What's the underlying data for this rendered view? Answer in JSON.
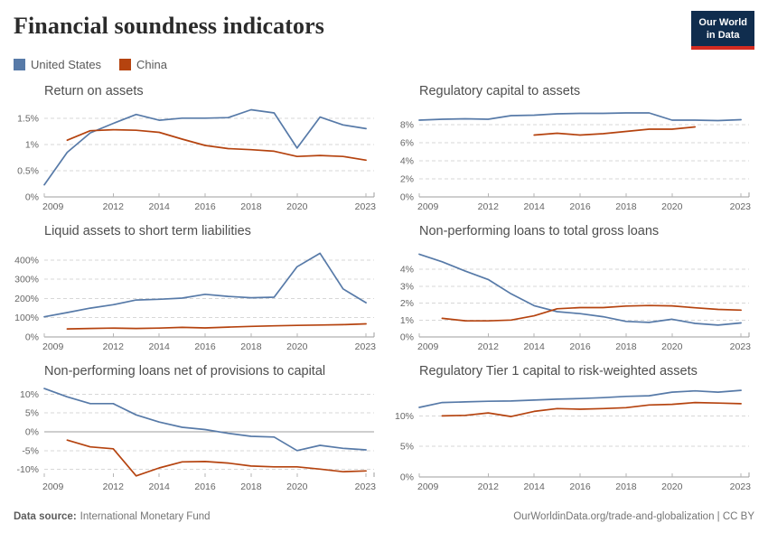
{
  "header": {
    "title": "Financial soundness indicators",
    "logo": {
      "line1": "Our World",
      "line2": "in Data"
    }
  },
  "legend": {
    "items": [
      {
        "label": "United States",
        "color_key": "us"
      },
      {
        "label": "China",
        "color_key": "china"
      }
    ]
  },
  "colors": {
    "us": "#577aa8",
    "china": "#b5430f",
    "logo_bg": "#102d4e",
    "logo_bar": "#d42b20"
  },
  "footer": {
    "source_label": "Data source:",
    "source_value": "International Monetary Fund",
    "right_text": "OurWorldinData.org/trade-and-globalization | CC BY"
  },
  "chart_data": [
    {
      "type": "line",
      "title": "Return on assets",
      "unit": "%",
      "xlim": [
        2009,
        2023.35
      ],
      "ylim": [
        0,
        1.72
      ],
      "xticks": [
        2009,
        2012,
        2014,
        2016,
        2018,
        2020,
        2023
      ],
      "xtick_labels": [
        "2009",
        "2012",
        "2014",
        "2016",
        "2018",
        "2020",
        "2023"
      ],
      "yticks": [
        0,
        0.5,
        1,
        1.5
      ],
      "ytick_labels": [
        "0%",
        "0.5%",
        "1%",
        "1.5%"
      ],
      "series": [
        {
          "name": "United States",
          "color_key": "us",
          "x": [
            2009,
            2010,
            2011,
            2012,
            2013,
            2014,
            2015,
            2016,
            2017,
            2018,
            2019,
            2020,
            2021,
            2022,
            2023
          ],
          "values": [
            0.23,
            0.85,
            1.22,
            1.4,
            1.57,
            1.46,
            1.5,
            1.5,
            1.51,
            1.66,
            1.6,
            0.93,
            1.52,
            1.37,
            1.3
          ]
        },
        {
          "name": "China",
          "color_key": "china",
          "x": [
            2010,
            2011,
            2012,
            2013,
            2014,
            2015,
            2016,
            2017,
            2018,
            2019,
            2020,
            2021,
            2022,
            2023
          ],
          "values": [
            1.08,
            1.26,
            1.28,
            1.27,
            1.23,
            1.1,
            0.98,
            0.92,
            0.9,
            0.87,
            0.77,
            0.79,
            0.77,
            0.7
          ]
        }
      ]
    },
    {
      "type": "line",
      "title": "Regulatory capital to assets",
      "unit": "%",
      "xlim": [
        2009,
        2023.35
      ],
      "ylim": [
        0,
        10
      ],
      "xticks": [
        2009,
        2012,
        2014,
        2016,
        2018,
        2020,
        2023
      ],
      "xtick_labels": [
        "2009",
        "2012",
        "2014",
        "2016",
        "2018",
        "2020",
        "2023"
      ],
      "yticks": [
        0,
        2,
        4,
        6,
        8
      ],
      "ytick_labels": [
        "0%",
        "2%",
        "4%",
        "6%",
        "8%"
      ],
      "series": [
        {
          "name": "United States",
          "color_key": "us",
          "x": [
            2009,
            2010,
            2011,
            2012,
            2013,
            2014,
            2015,
            2016,
            2017,
            2018,
            2019,
            2020,
            2021,
            2022,
            2023
          ],
          "values": [
            8.5,
            8.6,
            8.65,
            8.6,
            9.0,
            9.05,
            9.2,
            9.25,
            9.25,
            9.3,
            9.3,
            8.5,
            8.5,
            8.45,
            8.55
          ]
        },
        {
          "name": "China",
          "color_key": "china",
          "x": [
            2014,
            2015,
            2016,
            2017,
            2018,
            2019,
            2020,
            2021
          ],
          "values": [
            6.85,
            7.05,
            6.85,
            7.0,
            7.25,
            7.5,
            7.5,
            7.75
          ]
        }
      ]
    },
    {
      "type": "line",
      "title": "Liquid assets to short term liabilities",
      "unit": "%",
      "xlim": [
        2009,
        2023.35
      ],
      "ylim": [
        0,
        470
      ],
      "xticks": [
        2009,
        2012,
        2014,
        2016,
        2018,
        2020,
        2023
      ],
      "xtick_labels": [
        "2009",
        "2012",
        "2014",
        "2016",
        "2018",
        "2020",
        "2023"
      ],
      "yticks": [
        0,
        100,
        200,
        300,
        400
      ],
      "ytick_labels": [
        "0%",
        "100%",
        "200%",
        "300%",
        "400%"
      ],
      "series": [
        {
          "name": "United States",
          "color_key": "us",
          "x": [
            2009,
            2010,
            2011,
            2012,
            2013,
            2014,
            2015,
            2016,
            2017,
            2018,
            2019,
            2020,
            2021,
            2022,
            2023
          ],
          "values": [
            105,
            127,
            150,
            168,
            192,
            196,
            202,
            222,
            211,
            204,
            207,
            365,
            435,
            250,
            178
          ]
        },
        {
          "name": "China",
          "color_key": "china",
          "x": [
            2010,
            2011,
            2012,
            2013,
            2014,
            2015,
            2016,
            2017,
            2018,
            2019,
            2020,
            2021,
            2022,
            2023
          ],
          "values": [
            42,
            44,
            46,
            44,
            46,
            50,
            47,
            51,
            55,
            58,
            60,
            62,
            64,
            68
          ]
        }
      ]
    },
    {
      "type": "line",
      "title": "Non-performing loans to total gross loans",
      "unit": "%",
      "xlim": [
        2009,
        2023.35
      ],
      "ylim": [
        0,
        5.35
      ],
      "xticks": [
        2009,
        2012,
        2014,
        2016,
        2018,
        2020,
        2023
      ],
      "xtick_labels": [
        "2009",
        "2012",
        "2014",
        "2016",
        "2018",
        "2020",
        "2023"
      ],
      "yticks": [
        0,
        1,
        2,
        3,
        4
      ],
      "ytick_labels": [
        "0%",
        "1%",
        "2%",
        "3%",
        "4%"
      ],
      "series": [
        {
          "name": "United States",
          "color_key": "us",
          "x": [
            2009,
            2010,
            2011,
            2012,
            2013,
            2014,
            2015,
            2016,
            2017,
            2018,
            2019,
            2020,
            2021,
            2022,
            2023
          ],
          "values": [
            4.9,
            4.45,
            3.9,
            3.4,
            2.55,
            1.85,
            1.5,
            1.38,
            1.2,
            0.92,
            0.86,
            1.05,
            0.8,
            0.7,
            0.83
          ]
        },
        {
          "name": "China",
          "color_key": "china",
          "x": [
            2010,
            2011,
            2012,
            2013,
            2014,
            2015,
            2016,
            2017,
            2018,
            2019,
            2020,
            2021,
            2022,
            2023
          ],
          "values": [
            1.1,
            0.96,
            0.95,
            1.0,
            1.25,
            1.67,
            1.74,
            1.74,
            1.83,
            1.86,
            1.84,
            1.73,
            1.63,
            1.59
          ]
        }
      ]
    },
    {
      "type": "line",
      "title": "Non-performing loans net of provisions to capital",
      "unit": "%",
      "xlim": [
        2009,
        2023.35
      ],
      "ylim": [
        -12,
        12
      ],
      "xticks": [
        2009,
        2012,
        2014,
        2016,
        2018,
        2020,
        2023
      ],
      "xtick_labels": [
        "2009",
        "2012",
        "2014",
        "2016",
        "2018",
        "2020",
        "2023"
      ],
      "yticks": [
        -10,
        -5,
        0,
        5,
        10
      ],
      "ytick_labels": [
        "-10%",
        "-5%",
        "0%",
        "5%",
        "10%"
      ],
      "series": [
        {
          "name": "United States",
          "color_key": "us",
          "x": [
            2009,
            2010,
            2011,
            2012,
            2013,
            2014,
            2015,
            2016,
            2017,
            2018,
            2019,
            2020,
            2021,
            2022,
            2023
          ],
          "values": [
            11.5,
            9.3,
            7.5,
            7.5,
            4.5,
            2.6,
            1.2,
            0.6,
            -0.4,
            -1.2,
            -1.4,
            -5.0,
            -3.6,
            -4.4,
            -4.8
          ]
        },
        {
          "name": "China",
          "color_key": "china",
          "x": [
            2010,
            2011,
            2012,
            2013,
            2014,
            2015,
            2016,
            2017,
            2018,
            2019,
            2020,
            2021,
            2022,
            2023
          ],
          "values": [
            -2.2,
            -4.0,
            -4.5,
            -11.7,
            -9.6,
            -8.0,
            -7.9,
            -8.3,
            -9.1,
            -9.3,
            -9.3,
            -9.9,
            -10.6,
            -10.4
          ]
        }
      ]
    },
    {
      "type": "line",
      "title": "Regulatory Tier 1 capital to risk-weighted assets",
      "unit": "%",
      "xlim": [
        2009,
        2023.35
      ],
      "ylim": [
        0,
        14.8
      ],
      "xticks": [
        2009,
        2012,
        2014,
        2016,
        2018,
        2020,
        2023
      ],
      "xtick_labels": [
        "2009",
        "2012",
        "2014",
        "2016",
        "2018",
        "2020",
        "2023"
      ],
      "yticks": [
        0,
        5,
        10
      ],
      "ytick_labels": [
        "0%",
        "5%",
        "10%"
      ],
      "series": [
        {
          "name": "United States",
          "color_key": "us",
          "x": [
            2009,
            2010,
            2011,
            2012,
            2013,
            2014,
            2015,
            2016,
            2017,
            2018,
            2019,
            2020,
            2021,
            2022,
            2023
          ],
          "values": [
            11.4,
            12.2,
            12.3,
            12.4,
            12.45,
            12.6,
            12.75,
            12.85,
            13.0,
            13.2,
            13.3,
            13.9,
            14.1,
            13.9,
            14.2
          ]
        },
        {
          "name": "China",
          "color_key": "china",
          "x": [
            2010,
            2011,
            2012,
            2013,
            2014,
            2015,
            2016,
            2017,
            2018,
            2019,
            2020,
            2021,
            2022,
            2023
          ],
          "values": [
            10.0,
            10.1,
            10.5,
            9.9,
            10.75,
            11.2,
            11.1,
            11.2,
            11.35,
            11.8,
            11.9,
            12.2,
            12.1,
            12.0
          ]
        }
      ]
    }
  ]
}
